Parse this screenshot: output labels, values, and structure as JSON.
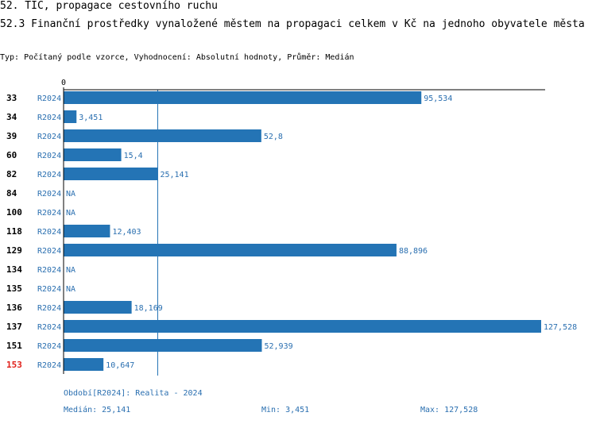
{
  "header": {
    "title": "52. TIC, propagace cestovního ruchu",
    "subtitle": "52.3 Finanční prostředky vynaložené městem na propagaci celkem v Kč na jednoho obyvatele města",
    "meta": "Typ: Počítaný podle vzorce, Vyhodnocení: Absolutní hodnoty, Průměr: Medián"
  },
  "colors": {
    "bar": "#2474b5",
    "label_text": "#2a6fb0",
    "highlight_id": "#e0201a",
    "axis": "#000000"
  },
  "chart_data": {
    "type": "bar",
    "orientation": "horizontal",
    "xlim": [
      0,
      127.528
    ],
    "axis_zero_label": "0",
    "median_line": 25.141,
    "rows": [
      {
        "id": "33",
        "period": "R2024",
        "value": 95.534,
        "label": "95,534",
        "highlight": false
      },
      {
        "id": "34",
        "period": "R2024",
        "value": 3.451,
        "label": "3,451",
        "highlight": false
      },
      {
        "id": "39",
        "period": "R2024",
        "value": 52.8,
        "label": "52,8",
        "highlight": false
      },
      {
        "id": "60",
        "period": "R2024",
        "value": 15.4,
        "label": "15,4",
        "highlight": false
      },
      {
        "id": "82",
        "period": "R2024",
        "value": 25.141,
        "label": "25,141",
        "highlight": false
      },
      {
        "id": "84",
        "period": "R2024",
        "value": null,
        "label": "NA",
        "highlight": false
      },
      {
        "id": "100",
        "period": "R2024",
        "value": null,
        "label": "NA",
        "highlight": false
      },
      {
        "id": "118",
        "period": "R2024",
        "value": 12.403,
        "label": "12,403",
        "highlight": false
      },
      {
        "id": "129",
        "period": "R2024",
        "value": 88.896,
        "label": "88,896",
        "highlight": false
      },
      {
        "id": "134",
        "period": "R2024",
        "value": null,
        "label": "NA",
        "highlight": false
      },
      {
        "id": "135",
        "period": "R2024",
        "value": null,
        "label": "NA",
        "highlight": false
      },
      {
        "id": "136",
        "period": "R2024",
        "value": 18.169,
        "label": "18,169",
        "highlight": false
      },
      {
        "id": "137",
        "period": "R2024",
        "value": 127.528,
        "label": "127,528",
        "highlight": false
      },
      {
        "id": "151",
        "period": "R2024",
        "value": 52.939,
        "label": "52,939",
        "highlight": false
      },
      {
        "id": "153",
        "period": "R2024",
        "value": 10.647,
        "label": "10,647",
        "highlight": true
      }
    ]
  },
  "footer": {
    "period_legend": "Období[R2024]: Realita - 2024",
    "median": "Medián: 25,141",
    "min": "Min: 3,451",
    "max": "Max: 127,528"
  }
}
